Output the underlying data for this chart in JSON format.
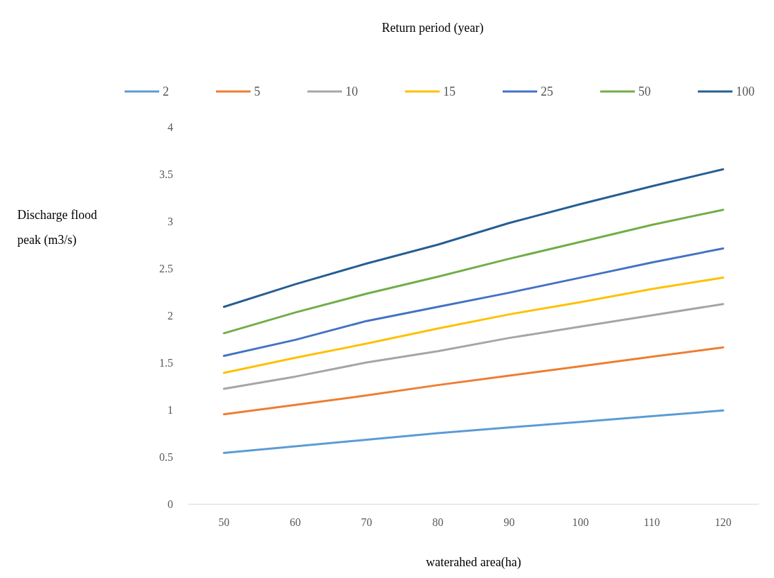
{
  "chart_data": {
    "type": "line",
    "legend_title": "Return period (year)",
    "xlabel": "waterahed area(ha)",
    "ylabel": "Discharge flood\npeak (m3/s)",
    "categories": [
      "50",
      "60",
      "70",
      "80",
      "90",
      "100",
      "110",
      "120"
    ],
    "ylim": [
      0,
      4
    ],
    "yticks": [
      0,
      0.5,
      1,
      1.5,
      2,
      2.5,
      3,
      3.5,
      4
    ],
    "grid": false,
    "legend": "top",
    "marker": "none",
    "line_style": "solid",
    "series": [
      {
        "name": "2",
        "color": "#5b9bd5",
        "values": [
          0.54,
          0.61,
          0.68,
          0.75,
          0.81,
          0.87,
          0.93,
          0.99
        ]
      },
      {
        "name": "5",
        "color": "#ed7d31",
        "values": [
          0.95,
          1.05,
          1.15,
          1.26,
          1.36,
          1.46,
          1.56,
          1.66
        ]
      },
      {
        "name": "10",
        "color": "#a5a5a5",
        "values": [
          1.22,
          1.35,
          1.5,
          1.62,
          1.76,
          1.88,
          2.0,
          2.12
        ]
      },
      {
        "name": "15",
        "color": "#ffc000",
        "values": [
          1.39,
          1.55,
          1.7,
          1.86,
          2.01,
          2.14,
          2.28,
          2.4
        ]
      },
      {
        "name": "25",
        "color": "#4472c4",
        "values": [
          1.57,
          1.74,
          1.94,
          2.09,
          2.24,
          2.4,
          2.56,
          2.71
        ]
      },
      {
        "name": "50",
        "color": "#70ad47",
        "values": [
          1.81,
          2.03,
          2.23,
          2.41,
          2.6,
          2.78,
          2.96,
          3.12
        ]
      },
      {
        "name": "100",
        "color": "#255e91",
        "values": [
          2.09,
          2.33,
          2.55,
          2.75,
          2.98,
          3.18,
          3.37,
          3.55
        ]
      }
    ]
  }
}
